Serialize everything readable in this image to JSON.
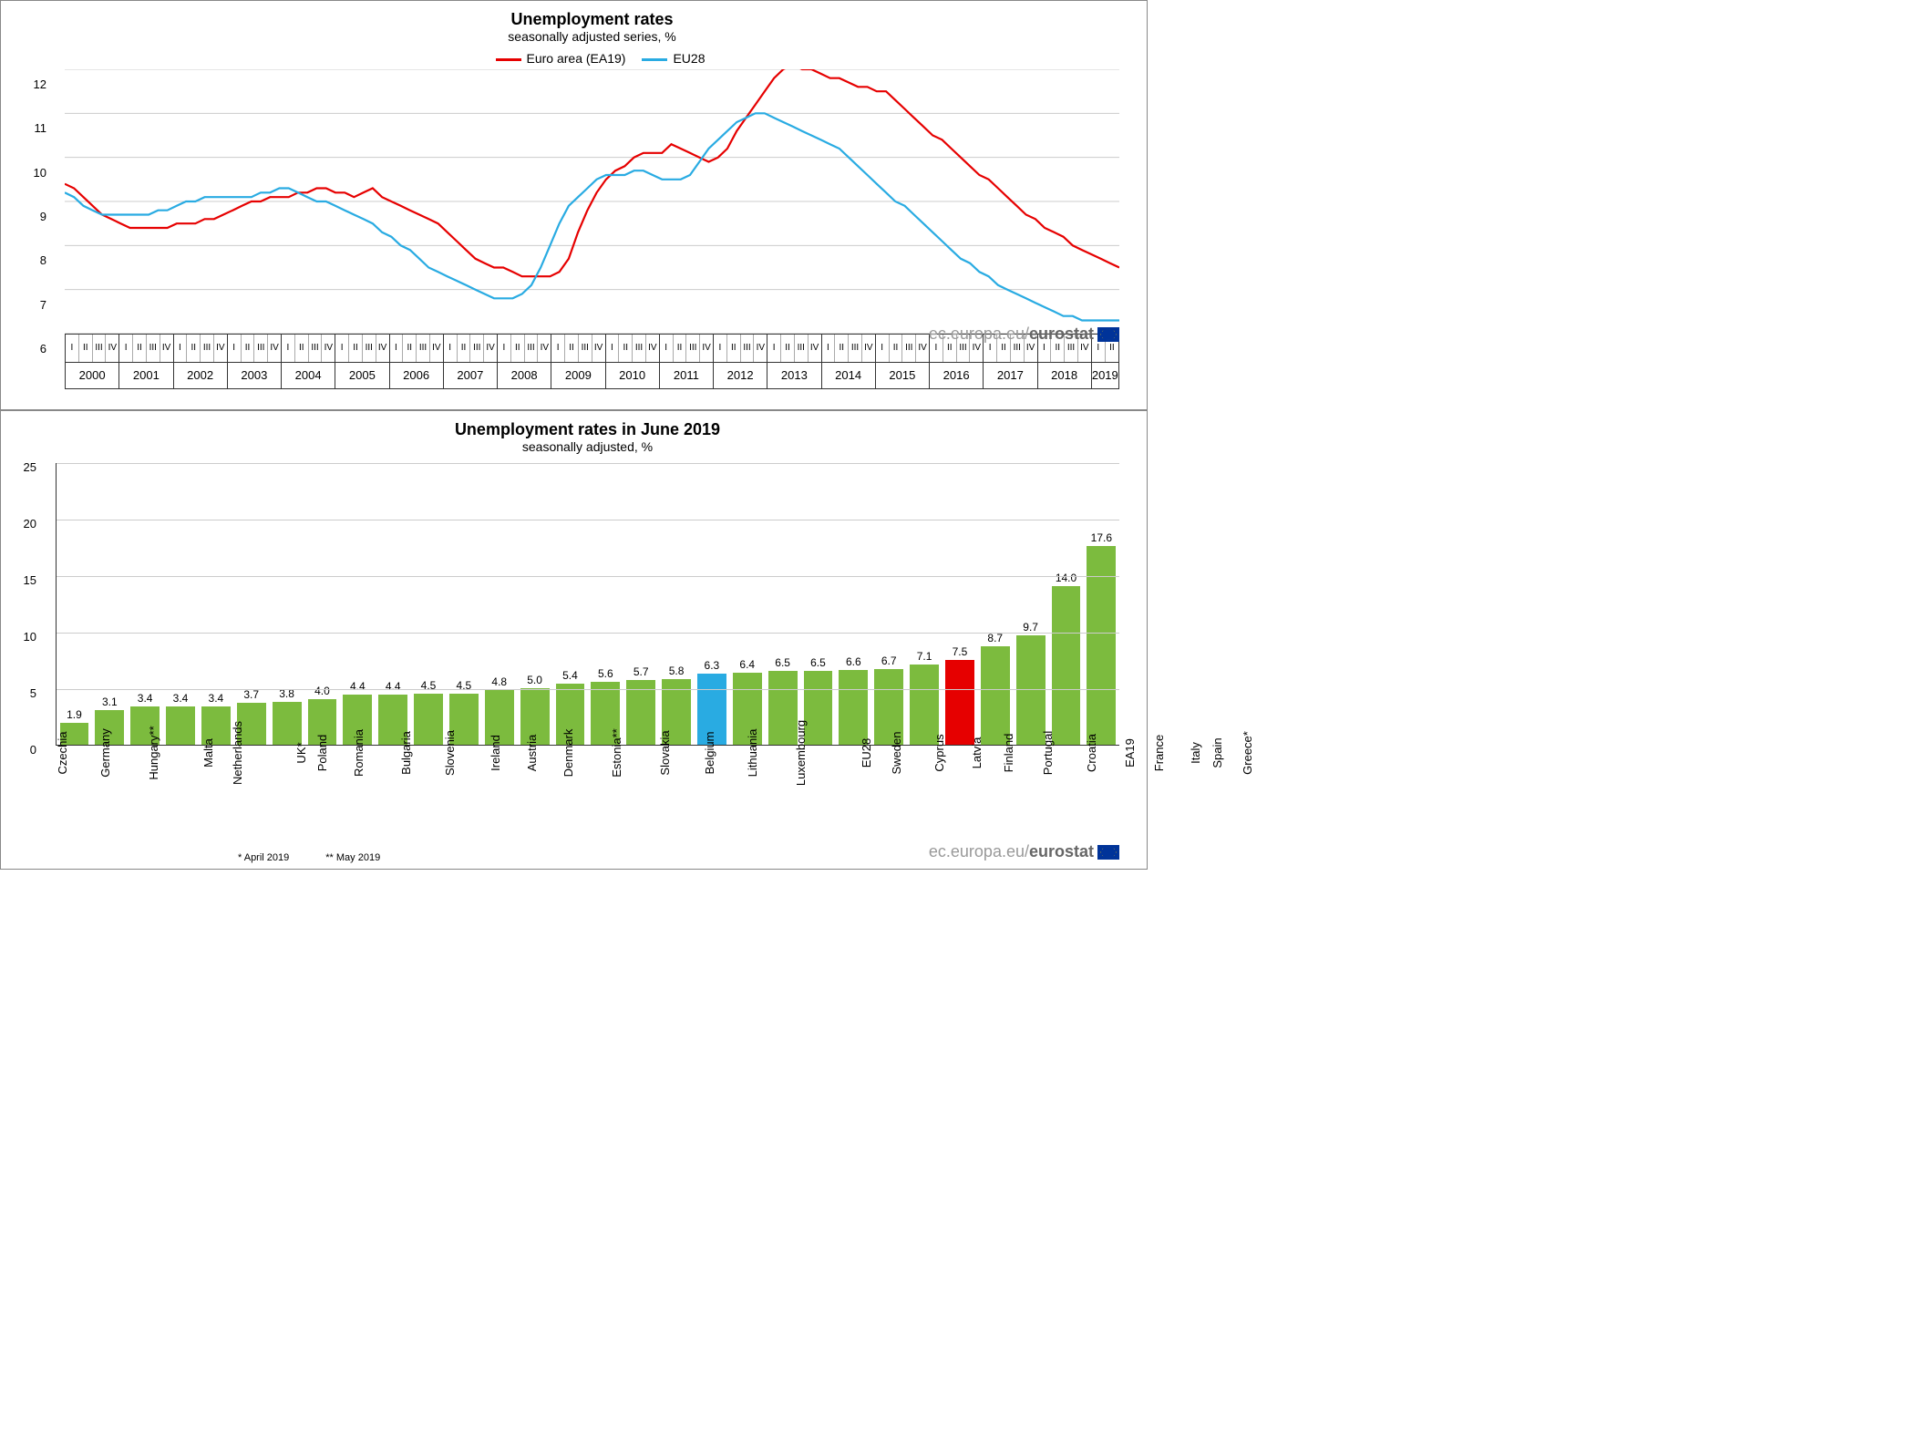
{
  "colors": {
    "ea19": "#e60000",
    "eu28": "#29abe2",
    "bar_default": "#7cbb3e",
    "bar_eu28": "#29abe2",
    "bar_ea19": "#e60000",
    "grid": "#cccccc",
    "axis": "#333333",
    "attribution": "#888888"
  },
  "line_chart": {
    "title": "Unemployment rates",
    "subtitle": "seasonally adjusted series, %",
    "title_fontsize": 18,
    "legend": [
      {
        "label": "Euro area (EA19)",
        "color_key": "ea19"
      },
      {
        "label": "EU28",
        "color_key": "eu28"
      }
    ],
    "ylim": [
      6,
      12
    ],
    "ytick_step": 1,
    "years": [
      2000,
      2001,
      2002,
      2003,
      2004,
      2005,
      2006,
      2007,
      2008,
      2009,
      2010,
      2011,
      2012,
      2013,
      2014,
      2015,
      2016,
      2017,
      2018,
      2019
    ],
    "last_year_partial_quarters": 2,
    "quarters_labels": [
      "I",
      "II",
      "III",
      "IV"
    ],
    "series": {
      "ea19": [
        9.4,
        9.3,
        9.1,
        8.9,
        8.7,
        8.6,
        8.5,
        8.4,
        8.4,
        8.4,
        8.4,
        8.4,
        8.5,
        8.5,
        8.5,
        8.6,
        8.6,
        8.7,
        8.8,
        8.9,
        9.0,
        9.0,
        9.1,
        9.1,
        9.1,
        9.2,
        9.2,
        9.3,
        9.3,
        9.2,
        9.2,
        9.1,
        9.2,
        9.3,
        9.1,
        9.0,
        8.9,
        8.8,
        8.7,
        8.6,
        8.5,
        8.3,
        8.1,
        7.9,
        7.7,
        7.6,
        7.5,
        7.5,
        7.4,
        7.3,
        7.3,
        7.3,
        7.3,
        7.4,
        7.7,
        8.3,
        8.8,
        9.2,
        9.5,
        9.7,
        9.8,
        10.0,
        10.1,
        10.1,
        10.1,
        10.3,
        10.2,
        10.1,
        10.0,
        9.9,
        10.0,
        10.2,
        10.6,
        10.9,
        11.2,
        11.5,
        11.8,
        12.0,
        12.1,
        12.0,
        12.0,
        11.9,
        11.8,
        11.8,
        11.7,
        11.6,
        11.6,
        11.5,
        11.5,
        11.3,
        11.1,
        10.9,
        10.7,
        10.5,
        10.4,
        10.2,
        10.0,
        9.8,
        9.6,
        9.5,
        9.3,
        9.1,
        8.9,
        8.7,
        8.6,
        8.4,
        8.3,
        8.2,
        8.0,
        7.9,
        7.8,
        7.7,
        7.6,
        7.5
      ],
      "eu28": [
        9.2,
        9.1,
        8.9,
        8.8,
        8.7,
        8.7,
        8.7,
        8.7,
        8.7,
        8.7,
        8.8,
        8.8,
        8.9,
        9.0,
        9.0,
        9.1,
        9.1,
        9.1,
        9.1,
        9.1,
        9.1,
        9.2,
        9.2,
        9.3,
        9.3,
        9.2,
        9.1,
        9.0,
        9.0,
        8.9,
        8.8,
        8.7,
        8.6,
        8.5,
        8.3,
        8.2,
        8.0,
        7.9,
        7.7,
        7.5,
        7.4,
        7.3,
        7.2,
        7.1,
        7.0,
        6.9,
        6.8,
        6.8,
        6.8,
        6.9,
        7.1,
        7.5,
        8.0,
        8.5,
        8.9,
        9.1,
        9.3,
        9.5,
        9.6,
        9.6,
        9.6,
        9.7,
        9.7,
        9.6,
        9.5,
        9.5,
        9.5,
        9.6,
        9.9,
        10.2,
        10.4,
        10.6,
        10.8,
        10.9,
        11.0,
        11.0,
        10.9,
        10.8,
        10.7,
        10.6,
        10.5,
        10.4,
        10.3,
        10.2,
        10.0,
        9.8,
        9.6,
        9.4,
        9.2,
        9.0,
        8.9,
        8.7,
        8.5,
        8.3,
        8.1,
        7.9,
        7.7,
        7.6,
        7.4,
        7.3,
        7.1,
        7.0,
        6.9,
        6.8,
        6.7,
        6.6,
        6.5,
        6.4,
        6.4,
        6.3,
        6.3,
        6.3,
        6.3,
        6.3
      ]
    },
    "attribution": {
      "prefix": "ec.europa.eu/",
      "bold": "eurostat"
    }
  },
  "bar_chart": {
    "title": "Unemployment rates in June 2019",
    "subtitle": "seasonally adjusted, %",
    "title_fontsize": 18,
    "ylim": [
      0,
      25
    ],
    "ytick_step": 5,
    "footnotes": [
      "* April 2019",
      "** May 2019"
    ],
    "attribution": {
      "prefix": "ec.europa.eu/",
      "bold": "eurostat"
    },
    "bars": [
      {
        "label": "Czechia",
        "value": 1.9,
        "color_key": "bar_default"
      },
      {
        "label": "Germany",
        "value": 3.1,
        "color_key": "bar_default"
      },
      {
        "label": "Hungary**",
        "value": 3.4,
        "color_key": "bar_default"
      },
      {
        "label": "Malta",
        "value": 3.4,
        "color_key": "bar_default"
      },
      {
        "label": "Netherlands",
        "value": 3.4,
        "color_key": "bar_default"
      },
      {
        "label": "UK*",
        "value": 3.7,
        "color_key": "bar_default"
      },
      {
        "label": "Poland",
        "value": 3.8,
        "color_key": "bar_default"
      },
      {
        "label": "Romania",
        "value": 4.0,
        "color_key": "bar_default"
      },
      {
        "label": "Bulgaria",
        "value": 4.4,
        "color_key": "bar_default"
      },
      {
        "label": "Slovenia",
        "value": 4.4,
        "color_key": "bar_default"
      },
      {
        "label": "Ireland",
        "value": 4.5,
        "color_key": "bar_default"
      },
      {
        "label": "Austria",
        "value": 4.5,
        "color_key": "bar_default"
      },
      {
        "label": "Denmark",
        "value": 4.8,
        "color_key": "bar_default"
      },
      {
        "label": "Estonia**",
        "value": 5.0,
        "color_key": "bar_default"
      },
      {
        "label": "Slovakia",
        "value": 5.4,
        "color_key": "bar_default"
      },
      {
        "label": "Belgium",
        "value": 5.6,
        "color_key": "bar_default"
      },
      {
        "label": "Lithuania",
        "value": 5.7,
        "color_key": "bar_default"
      },
      {
        "label": "Luxembourg",
        "value": 5.8,
        "color_key": "bar_default"
      },
      {
        "label": "EU28",
        "value": 6.3,
        "color_key": "bar_eu28"
      },
      {
        "label": "Sweden",
        "value": 6.4,
        "color_key": "bar_default"
      },
      {
        "label": "Cyprus",
        "value": 6.5,
        "color_key": "bar_default"
      },
      {
        "label": "Latvia",
        "value": 6.5,
        "color_key": "bar_default"
      },
      {
        "label": "Finland",
        "value": 6.6,
        "color_key": "bar_default"
      },
      {
        "label": "Portugal",
        "value": 6.7,
        "color_key": "bar_default"
      },
      {
        "label": "Croatia",
        "value": 7.1,
        "color_key": "bar_default"
      },
      {
        "label": "EA19",
        "value": 7.5,
        "color_key": "bar_ea19"
      },
      {
        "label": "France",
        "value": 8.7,
        "color_key": "bar_default"
      },
      {
        "label": "Italy",
        "value": 9.7,
        "color_key": "bar_default"
      },
      {
        "label": "Spain",
        "value": 14.0,
        "color_key": "bar_default"
      },
      {
        "label": "Greece*",
        "value": 17.6,
        "color_key": "bar_default"
      }
    ]
  }
}
